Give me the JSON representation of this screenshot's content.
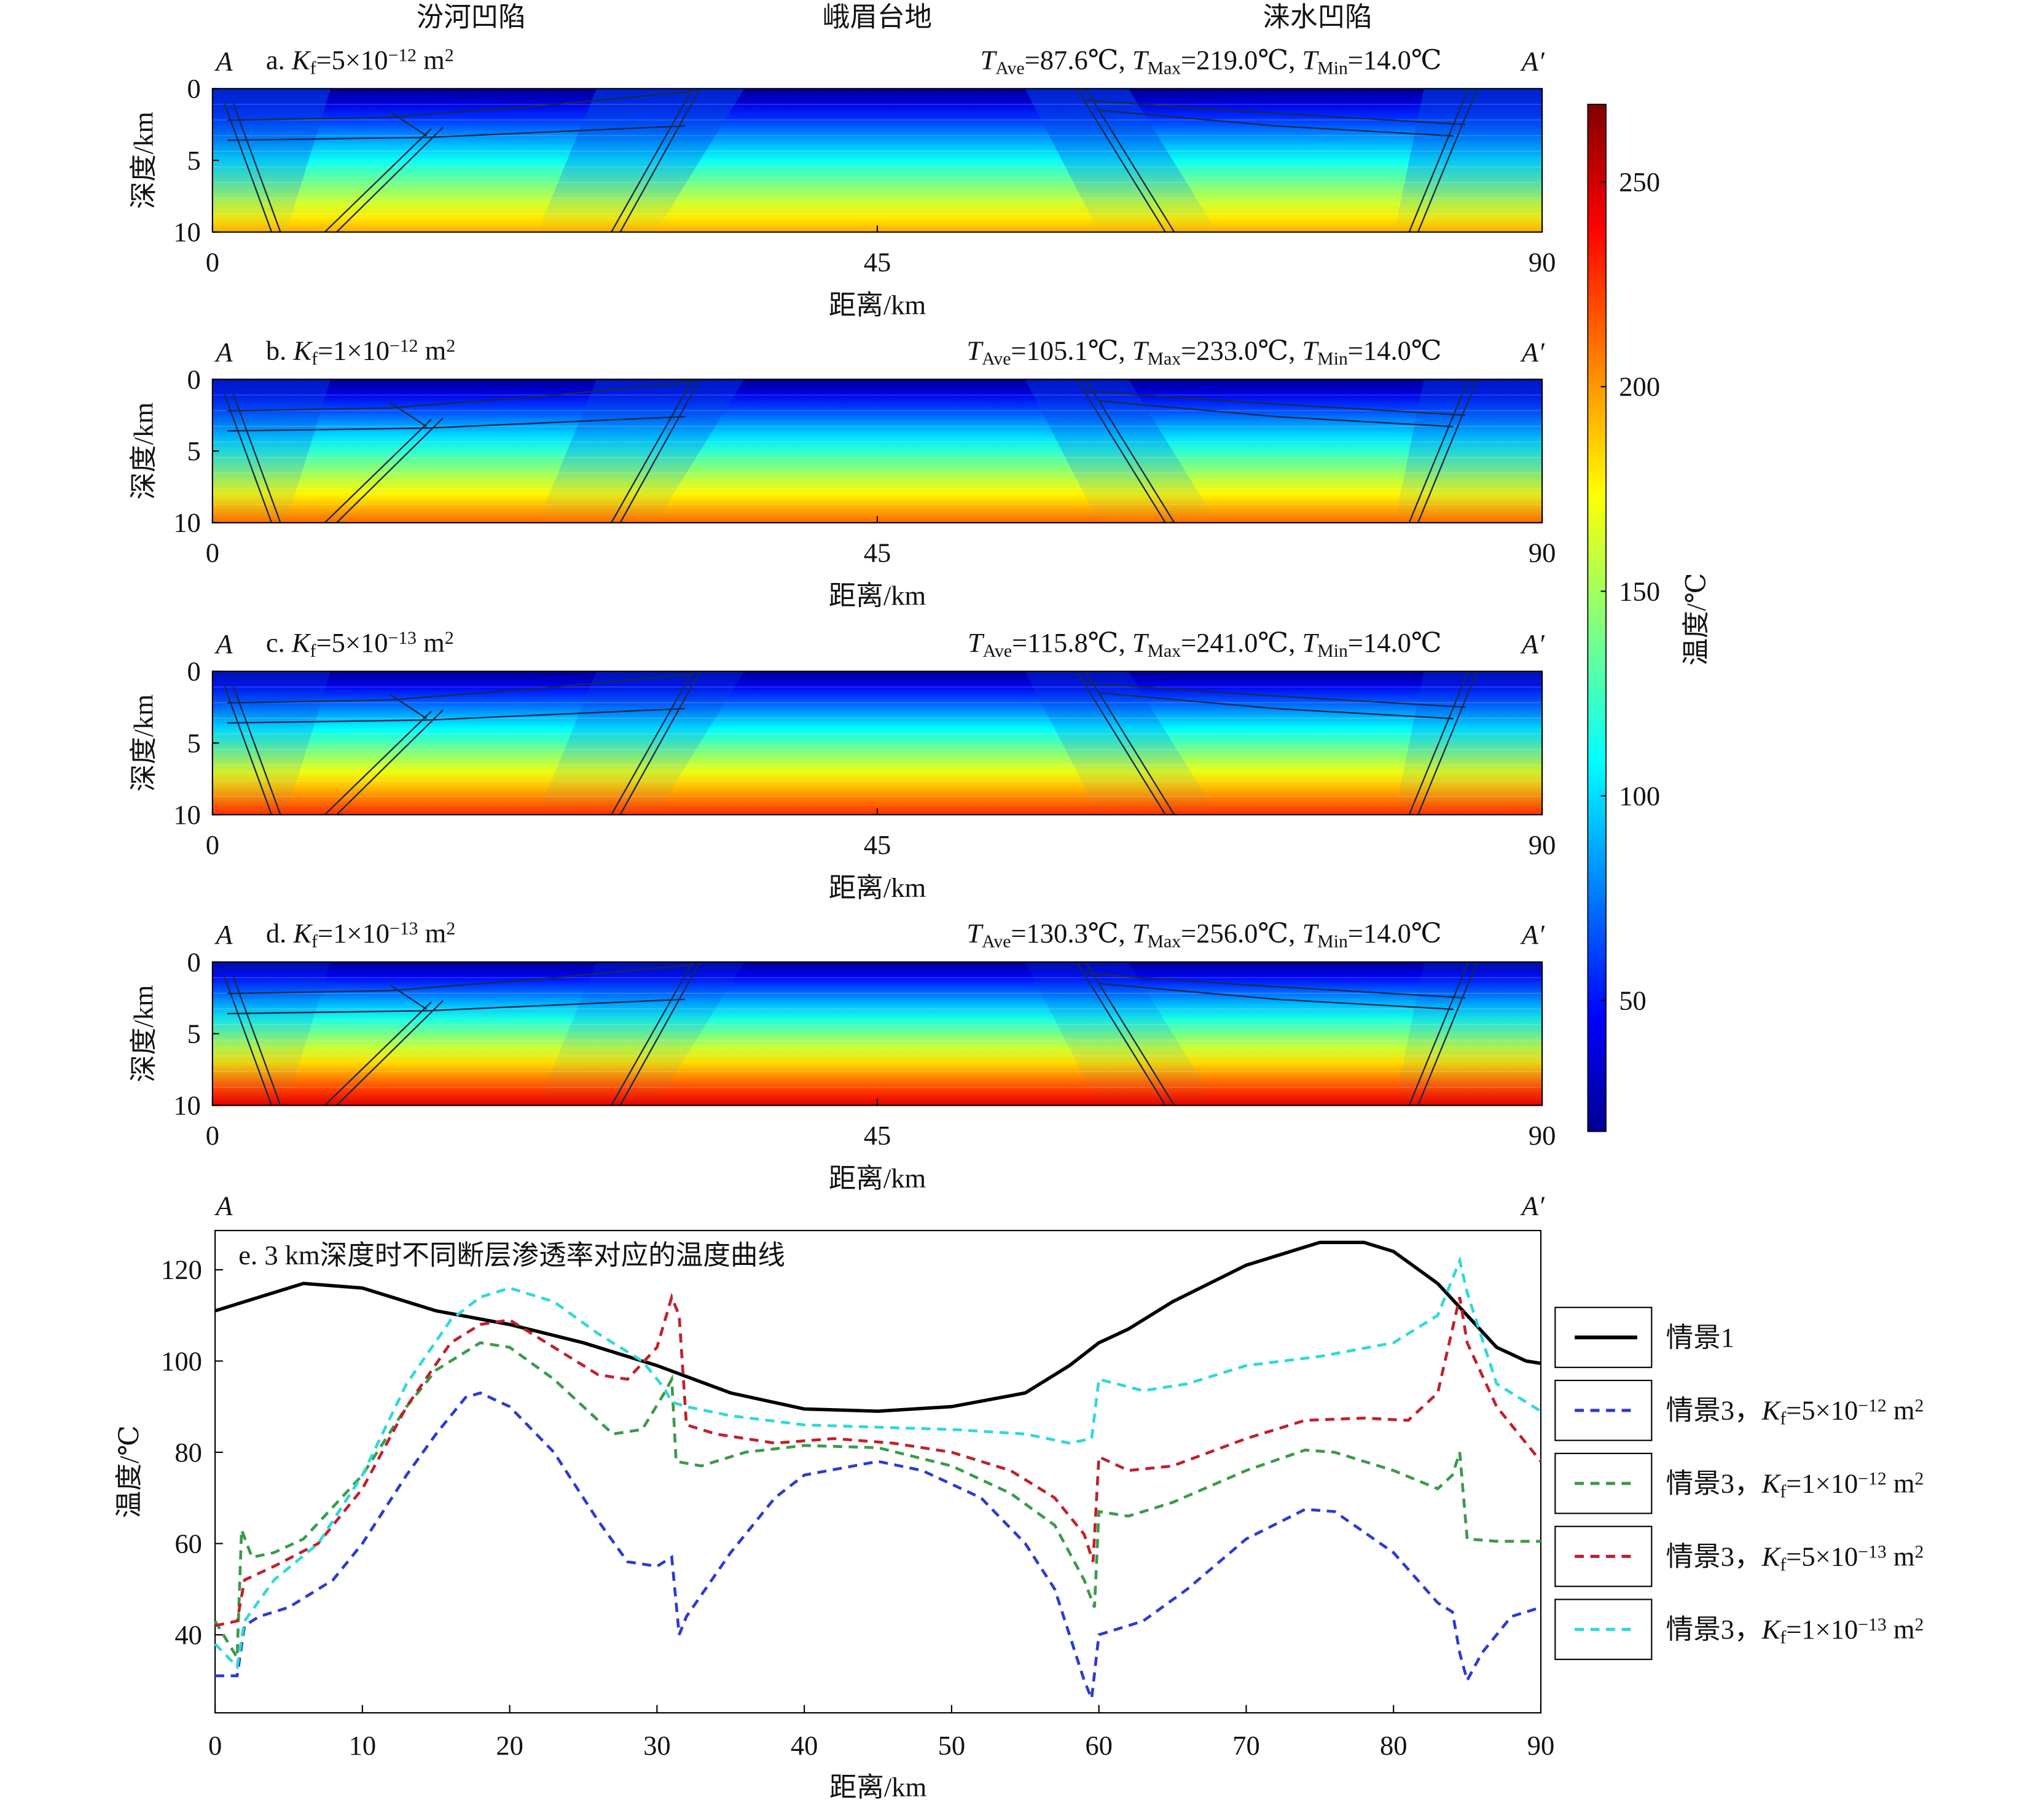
{
  "chart_data": [
    {
      "type": "heatmap",
      "region_labels": [
        "汾河凹陷",
        "峨眉台地",
        "涞水凹陷"
      ],
      "section_start": "A",
      "section_end": "A′",
      "title": [
        {
          "text": "a. "
        },
        {
          "text": "K",
          "italic": true
        },
        {
          "text": "f",
          "sub": true
        },
        {
          "text": "=5×10"
        },
        {
          "text": "−12",
          "sup": true
        },
        {
          "text": " m"
        },
        {
          "text": "2",
          "sup": true
        }
      ],
      "stats": [
        {
          "text": "T",
          "italic": true
        },
        {
          "text": "Ave",
          "sub": true
        },
        {
          "text": "=87.6℃, "
        },
        {
          "text": "T",
          "italic": true
        },
        {
          "text": "Max",
          "sub": true
        },
        {
          "text": "=219.0℃, "
        },
        {
          "text": "T",
          "italic": true
        },
        {
          "text": "Min",
          "sub": true
        },
        {
          "text": "=14.0℃"
        }
      ],
      "xlabel": "距离/km",
      "ylabel": "深度/km",
      "xlim": [
        0,
        90
      ],
      "ylim": [
        10,
        0
      ],
      "xticks": [
        0,
        45,
        90
      ],
      "yticks": [
        0,
        5,
        10
      ]
    },
    {
      "type": "heatmap",
      "section_start": "A",
      "section_end": "A′",
      "title": [
        {
          "text": "b. "
        },
        {
          "text": "K",
          "italic": true
        },
        {
          "text": "f",
          "sub": true
        },
        {
          "text": "=1×10"
        },
        {
          "text": "−12",
          "sup": true
        },
        {
          "text": " m"
        },
        {
          "text": "2",
          "sup": true
        }
      ],
      "stats": [
        {
          "text": "T",
          "italic": true
        },
        {
          "text": "Ave",
          "sub": true
        },
        {
          "text": "=105.1℃, "
        },
        {
          "text": "T",
          "italic": true
        },
        {
          "text": "Max",
          "sub": true
        },
        {
          "text": "=233.0℃, "
        },
        {
          "text": "T",
          "italic": true
        },
        {
          "text": "Min",
          "sub": true
        },
        {
          "text": "=14.0℃"
        }
      ],
      "xlabel": "距离/km",
      "ylabel": "深度/km",
      "xlim": [
        0,
        90
      ],
      "ylim": [
        10,
        0
      ],
      "xticks": [
        0,
        45,
        90
      ],
      "yticks": [
        0,
        5,
        10
      ]
    },
    {
      "type": "heatmap",
      "section_start": "A",
      "section_end": "A′",
      "title": [
        {
          "text": "c. "
        },
        {
          "text": "K",
          "italic": true
        },
        {
          "text": "f",
          "sub": true
        },
        {
          "text": "=5×10"
        },
        {
          "text": "−13",
          "sup": true
        },
        {
          "text": " m"
        },
        {
          "text": "2",
          "sup": true
        }
      ],
      "stats": [
        {
          "text": "T",
          "italic": true
        },
        {
          "text": "Ave",
          "sub": true
        },
        {
          "text": "=115.8℃, "
        },
        {
          "text": "T",
          "italic": true
        },
        {
          "text": "Max",
          "sub": true
        },
        {
          "text": "=241.0℃, "
        },
        {
          "text": "T",
          "italic": true
        },
        {
          "text": "Min",
          "sub": true
        },
        {
          "text": "=14.0℃"
        }
      ],
      "xlabel": "距离/km",
      "ylabel": "深度/km",
      "xlim": [
        0,
        90
      ],
      "ylim": [
        10,
        0
      ],
      "xticks": [
        0,
        45,
        90
      ],
      "yticks": [
        0,
        5,
        10
      ]
    },
    {
      "type": "heatmap",
      "section_start": "A",
      "section_end": "A′",
      "title": [
        {
          "text": "d. "
        },
        {
          "text": "K",
          "italic": true
        },
        {
          "text": "f",
          "sub": true
        },
        {
          "text": "=1×10"
        },
        {
          "text": "−13",
          "sup": true
        },
        {
          "text": " m"
        },
        {
          "text": "2",
          "sup": true
        }
      ],
      "stats": [
        {
          "text": "T",
          "italic": true
        },
        {
          "text": "Ave",
          "sub": true
        },
        {
          "text": "=130.3℃, "
        },
        {
          "text": "T",
          "italic": true
        },
        {
          "text": "Max",
          "sub": true
        },
        {
          "text": "=256.0℃, "
        },
        {
          "text": "T",
          "italic": true
        },
        {
          "text": "Min",
          "sub": true
        },
        {
          "text": "=14.0℃"
        }
      ],
      "xlabel": "距离/km",
      "ylabel": "深度/km",
      "xlim": [
        0,
        90
      ],
      "ylim": [
        10,
        0
      ],
      "xticks": [
        0,
        45,
        90
      ],
      "yticks": [
        0,
        5,
        10
      ]
    },
    {
      "type": "line",
      "section_start": "A",
      "section_end": "A′",
      "title": "e. 3 km深度时不同断层渗透率对应的温度曲线",
      "xlabel": "距离/km",
      "ylabel": "温度/℃",
      "xlim": [
        0,
        90
      ],
      "ylim": [
        22.9,
        128.6
      ],
      "xticks": [
        0,
        10,
        20,
        30,
        40,
        50,
        60,
        70,
        80,
        90
      ],
      "yticks": [
        40,
        60,
        80,
        100,
        120
      ],
      "legend": "outside right",
      "series": [
        {
          "name": [
            {
              "text": "情景1"
            }
          ],
          "color": "#000000",
          "dashed": false,
          "x": [
            0,
            6,
            10,
            15,
            20,
            25,
            30,
            35,
            40,
            45,
            50,
            55,
            58,
            60,
            62,
            65,
            70,
            75,
            78,
            80,
            83,
            85,
            87,
            89,
            90
          ],
          "values": [
            111,
            117,
            116,
            111,
            108,
            104,
            99,
            93,
            89.5,
            89,
            90,
            93,
            99,
            104,
            107,
            113,
            121,
            126,
            126,
            124,
            117,
            110,
            103,
            100,
            99.5
          ]
        },
        {
          "name": [
            {
              "text": "情景3，"
            },
            {
              "text": "K",
              "italic": true
            },
            {
              "text": "f",
              "sub": true
            },
            {
              "text": "=5×10"
            },
            {
              "text": "−12",
              "sup": true
            },
            {
              "text": " m"
            },
            {
              "text": "2",
              "sup": true
            }
          ],
          "color": "#2b3bd0",
          "dashed": true,
          "x": [
            0,
            1.5,
            2,
            3,
            5,
            8,
            10,
            13,
            15,
            17,
            18,
            20,
            23,
            26,
            28,
            30,
            31,
            31.5,
            32,
            35,
            38,
            40,
            45,
            48,
            52,
            55,
            57,
            59,
            59.5,
            60,
            63,
            66,
            70,
            74,
            76,
            80,
            83,
            84,
            84.5,
            85,
            86,
            88,
            90
          ],
          "values": [
            31,
            31,
            42,
            44,
            46,
            52,
            60,
            75,
            84,
            92,
            93,
            90,
            80,
            65,
            56,
            55,
            57,
            40,
            44,
            58,
            70,
            75,
            78,
            76,
            70,
            60,
            50,
            30,
            26,
            40,
            43,
            50,
            61,
            67.5,
            67,
            58,
            47,
            45,
            36,
            30,
            36,
            44,
            46
          ]
        },
        {
          "name": [
            {
              "text": "情景3，"
            },
            {
              "text": "K",
              "italic": true
            },
            {
              "text": "f",
              "sub": true
            },
            {
              "text": "=1×10"
            },
            {
              "text": "−12",
              "sup": true
            },
            {
              "text": " m"
            },
            {
              "text": "2",
              "sup": true
            }
          ],
          "color": "#3a9a4a",
          "dashed": true,
          "x": [
            0,
            1.5,
            1.8,
            2.5,
            4,
            6,
            10,
            13,
            15,
            18,
            20,
            23,
            26,
            27,
            29,
            30.5,
            31,
            31.3,
            33,
            36,
            40,
            45,
            50,
            54,
            57,
            59,
            59.7,
            60,
            62,
            65,
            70,
            74,
            76,
            80,
            83,
            84,
            84.5,
            85,
            87,
            90
          ],
          "values": [
            43,
            35,
            63,
            57,
            58,
            61,
            75,
            90,
            98,
            104,
            103,
            96,
            87,
            84,
            85,
            93,
            96,
            78,
            77,
            80,
            81.5,
            81,
            77,
            71,
            64,
            52,
            46,
            67,
            66,
            69,
            76,
            80.5,
            80,
            76,
            72,
            75,
            80,
            61,
            60.5,
            60.5
          ]
        },
        {
          "name": [
            {
              "text": "情景3，"
            },
            {
              "text": "K",
              "italic": true
            },
            {
              "text": "f",
              "sub": true
            },
            {
              "text": "=5×10"
            },
            {
              "text": "−13",
              "sup": true
            },
            {
              "text": " m"
            },
            {
              "text": "2",
              "sup": true
            }
          ],
          "color": "#c0202a",
          "dashed": true,
          "x": [
            0,
            1.5,
            2,
            4,
            7,
            10,
            13,
            16,
            18,
            20,
            23,
            26,
            28,
            30,
            31,
            31.5,
            32,
            34,
            38,
            42,
            46,
            50,
            54,
            57,
            59,
            59.6,
            60,
            62,
            65,
            70,
            74,
            78,
            81,
            83,
            84.5,
            85,
            87,
            90
          ],
          "values": [
            42,
            43,
            52,
            55,
            60,
            72,
            90,
            104,
            108,
            109,
            103,
            97,
            96,
            103,
            114,
            110,
            86,
            84,
            82,
            83,
            82,
            80,
            76,
            70,
            62,
            56,
            79,
            76,
            77,
            83,
            87,
            87.5,
            87,
            93,
            114,
            104,
            90,
            78
          ]
        },
        {
          "name": [
            {
              "text": "情景3，"
            },
            {
              "text": "K",
              "italic": true
            },
            {
              "text": "f",
              "sub": true
            },
            {
              "text": "=1×10"
            },
            {
              "text": "−13",
              "sup": true
            },
            {
              "text": " m"
            },
            {
              "text": "2",
              "sup": true
            }
          ],
          "color": "#30d8d8",
          "dashed": true,
          "x": [
            0,
            1.5,
            2,
            4,
            7,
            10,
            13,
            16,
            18,
            20,
            23,
            26,
            29,
            30.5,
            31,
            32,
            35,
            40,
            45,
            50,
            55,
            58,
            59.5,
            60,
            63,
            66,
            70,
            75,
            80,
            83,
            84.5,
            85,
            87,
            90
          ],
          "values": [
            38,
            33,
            43,
            52,
            60,
            75,
            95,
            109,
            114,
            116,
            113,
            106,
            100,
            94,
            91,
            90,
            88,
            86,
            85.5,
            85,
            84,
            82,
            83,
            96,
            93.5,
            95,
            99,
            101,
            104,
            110,
            122,
            115,
            95,
            89
          ]
        }
      ]
    }
  ],
  "colorbar": {
    "label": "温度/℃",
    "lim": [
      18,
      269
    ],
    "ticks": [
      50,
      100,
      150,
      200,
      250
    ]
  }
}
